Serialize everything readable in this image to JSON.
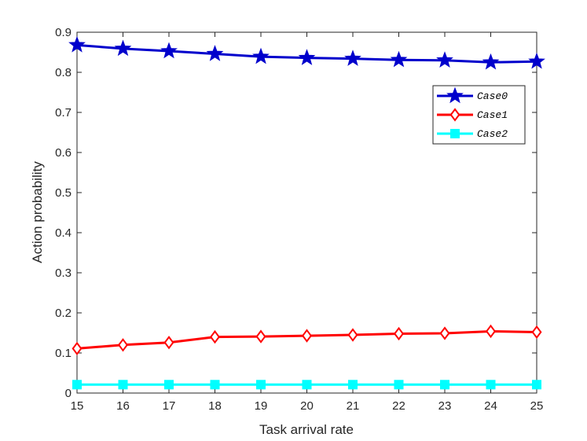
{
  "chart_data": {
    "type": "line",
    "title": "",
    "xlabel": "Task arrival rate",
    "ylabel": "Action probability",
    "x": [
      15,
      16,
      17,
      18,
      19,
      20,
      21,
      22,
      23,
      24,
      25
    ],
    "xlim": [
      15,
      25
    ],
    "ylim": [
      0,
      0.9
    ],
    "xticks": [
      "15",
      "16",
      "17",
      "18",
      "19",
      "20",
      "21",
      "22",
      "23",
      "24",
      "25"
    ],
    "yticks": [
      "0",
      "0.1",
      "0.2",
      "0.3",
      "0.4",
      "0.5",
      "0.6",
      "0.7",
      "0.8",
      "0.9"
    ],
    "grid": false,
    "legend_position": "top-right",
    "series": [
      {
        "name": "Case0",
        "color": "#0000cc",
        "marker": "star",
        "values": [
          0.868,
          0.859,
          0.853,
          0.846,
          0.839,
          0.836,
          0.834,
          0.831,
          0.83,
          0.825,
          0.827
        ]
      },
      {
        "name": "Case1",
        "color": "#ff0000",
        "marker": "diamond",
        "values": [
          0.111,
          0.12,
          0.126,
          0.14,
          0.141,
          0.143,
          0.145,
          0.148,
          0.149,
          0.154,
          0.152
        ]
      },
      {
        "name": "Case2",
        "color": "#00ffff",
        "marker": "square",
        "values": [
          0.021,
          0.021,
          0.021,
          0.021,
          0.021,
          0.021,
          0.021,
          0.021,
          0.021,
          0.021,
          0.021
        ]
      }
    ]
  }
}
